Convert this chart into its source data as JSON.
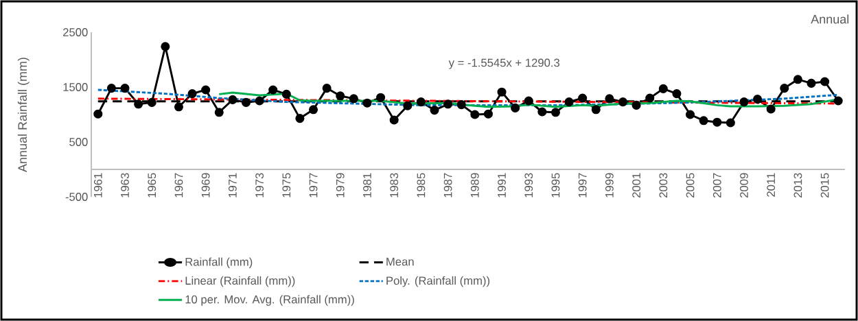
{
  "chart_data": {
    "type": "line",
    "title": "Annual",
    "ylabel": "Annual Rainfall (mm)",
    "x": [
      1961,
      1962,
      1963,
      1964,
      1965,
      1966,
      1967,
      1968,
      1969,
      1970,
      1971,
      1972,
      1973,
      1974,
      1975,
      1976,
      1977,
      1978,
      1979,
      1980,
      1981,
      1982,
      1983,
      1984,
      1985,
      1986,
      1987,
      1988,
      1989,
      1990,
      1991,
      1992,
      1993,
      1994,
      1995,
      1996,
      1997,
      1998,
      1999,
      2000,
      2001,
      2002,
      2003,
      2004,
      2005,
      2006,
      2007,
      2008,
      2009,
      2010,
      2011,
      2012,
      2013,
      2014,
      2015,
      2016
    ],
    "xlim": [
      1960.5,
      2016.5
    ],
    "xticks": [
      1961,
      1963,
      1965,
      1967,
      1969,
      1971,
      1973,
      1975,
      1977,
      1979,
      1981,
      1983,
      1985,
      1987,
      1989,
      1991,
      1993,
      1995,
      1997,
      1999,
      2001,
      2003,
      2005,
      2007,
      2009,
      2011,
      2013,
      2015
    ],
    "ylim": [
      -500,
      2500
    ],
    "yticks": [
      -500,
      500,
      1500,
      2500
    ],
    "legend": "bottom",
    "marker": "circle",
    "annotations": [
      "y = -1.5545x + 1290.3"
    ],
    "series": [
      {
        "name": "Rainfall (mm)",
        "color": "#000000",
        "line_style": "solid",
        "values": [
          1010,
          1480,
          1480,
          1190,
          1220,
          2240,
          1140,
          1380,
          1450,
          1040,
          1270,
          1220,
          1250,
          1450,
          1370,
          930,
          1090,
          1480,
          1340,
          1290,
          1210,
          1310,
          900,
          1160,
          1230,
          1080,
          1190,
          1180,
          1000,
          1010,
          1410,
          1120,
          1250,
          1050,
          1040,
          1230,
          1300,
          1090,
          1290,
          1230,
          1170,
          1300,
          1470,
          1380,
          1000,
          890,
          860,
          850,
          1230,
          1280,
          1100,
          1480,
          1640,
          1570,
          1600,
          1250
        ]
      },
      {
        "name": "Mean",
        "color": "#000000",
        "line_style": "dashed",
        "marker": "none",
        "x": [
          1961,
          2016
        ],
        "values": [
          1240,
          1240
        ]
      },
      {
        "name": "Linear (Rainfall (mm))",
        "color": "#ff0000",
        "line_style": "dashdot",
        "marker": "none",
        "x": [
          1961,
          2016
        ],
        "values": [
          1290,
          1200
        ]
      },
      {
        "name": "Poly. (Rainfall (mm))",
        "color": "#0070c0",
        "line_style": "dotted",
        "marker": "none",
        "x": [
          1961,
          1966,
          1970,
          1975,
          1980,
          1985,
          1990,
          1995,
          2000,
          2005,
          2009,
          2012,
          2016
        ],
        "values": [
          1450,
          1380,
          1300,
          1230,
          1200,
          1170,
          1170,
          1170,
          1190,
          1220,
          1260,
          1290,
          1360
        ]
      },
      {
        "name": "10 per. Mov. Avg. (Rainfall (mm))",
        "color": "#00b050",
        "line_style": "solid",
        "marker": "none",
        "x": [
          1970,
          1971,
          1973,
          1975,
          1976,
          1977,
          1980,
          1982,
          1984,
          1987,
          1989,
          1990,
          1992,
          1993,
          1995,
          1997,
          1998,
          2000,
          2002,
          2004,
          2005,
          2007,
          2008,
          2010,
          2012,
          2014,
          2016
        ],
        "values": [
          1370,
          1400,
          1350,
          1380,
          1260,
          1250,
          1250,
          1250,
          1200,
          1210,
          1160,
          1140,
          1150,
          1180,
          1140,
          1170,
          1160,
          1200,
          1210,
          1250,
          1240,
          1170,
          1150,
          1150,
          1160,
          1190,
          1280
        ]
      }
    ]
  }
}
